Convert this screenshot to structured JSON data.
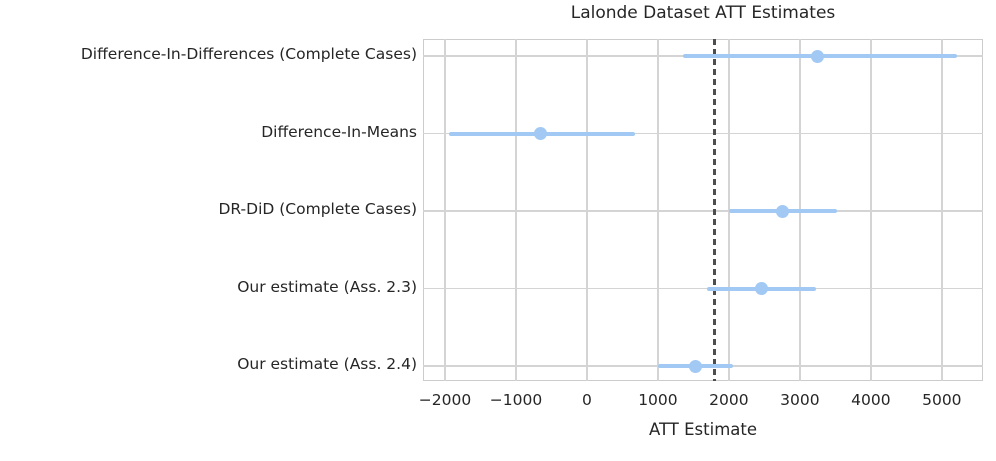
{
  "chart_data": {
    "type": "scatter",
    "subtype": "horizontal_errorbar",
    "title": "Lalonde Dataset ATT Estimates",
    "xlabel": "ATT Estimate",
    "ylabel": "",
    "grid": true,
    "legend": false,
    "xlim": [
      -2310,
      5580
    ],
    "x_ticks": [
      {
        "value": -2000,
        "label": "−2000"
      },
      {
        "value": -1000,
        "label": "−1000"
      },
      {
        "value": 0,
        "label": "0"
      },
      {
        "value": 1000,
        "label": "1000"
      },
      {
        "value": 2000,
        "label": "2000"
      },
      {
        "value": 3000,
        "label": "3000"
      },
      {
        "value": 4000,
        "label": "4000"
      },
      {
        "value": 5000,
        "label": "5000"
      }
    ],
    "categories": [
      "Difference-In-Differences (Complete Cases)",
      "Difference-In-Means",
      "DR-DiD (Complete Cases)",
      "Our estimate (Ass. 2.3)",
      "Our estimate (Ass. 2.4)"
    ],
    "points": [
      {
        "label": "Difference-In-Differences (Complete Cases)",
        "estimate": 3250,
        "ci_low": 1350,
        "ci_high": 5220
      },
      {
        "label": "Difference-In-Means",
        "estimate": -660,
        "ci_low": -1950,
        "ci_high": 680
      },
      {
        "label": "DR-DiD (Complete Cases)",
        "estimate": 2750,
        "ci_low": 2000,
        "ci_high": 3520
      },
      {
        "label": "Our estimate (Ass. 2.3)",
        "estimate": 2460,
        "ci_low": 1690,
        "ci_high": 3230
      },
      {
        "label": "Our estimate (Ass. 2.4)",
        "estimate": 1530,
        "ci_low": 1000,
        "ci_high": 2060
      }
    ],
    "reference_line": {
      "value": 1794,
      "style": "dashed"
    },
    "colors": {
      "errorbar": "#a1c9f4",
      "marker": "#a1c9f4",
      "reference_line": "#4d4d4d",
      "grid": "#d4d4d4",
      "border": "#cccccc",
      "text": "#262626",
      "background": "#ffffff"
    }
  }
}
